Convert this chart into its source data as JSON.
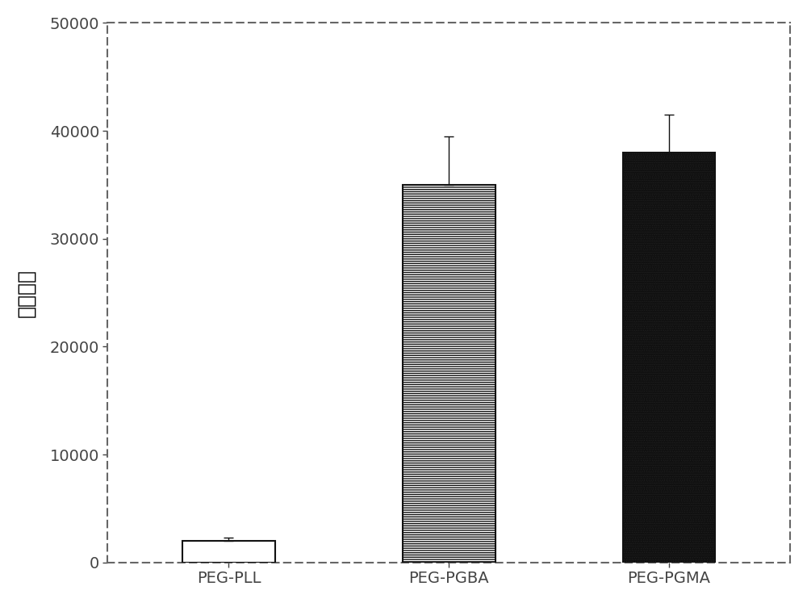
{
  "categories": [
    "PEG-PLL",
    "PEG-PGBA",
    "PEG-PGMA"
  ],
  "values": [
    2000,
    35000,
    38000
  ],
  "errors": [
    300,
    4500,
    3500
  ],
  "ylabel": "基因表达",
  "ylim": [
    0,
    50000
  ],
  "yticks": [
    0,
    10000,
    20000,
    30000,
    40000,
    50000
  ],
  "ytick_labels": [
    "0",
    "10000",
    "20000",
    "30000",
    "40000",
    "50000"
  ],
  "bar_width": 0.42,
  "figsize": [
    10.0,
    7.47
  ],
  "dpi": 100,
  "background_color": "#ffffff",
  "spine_color": "#666666",
  "edge_color": "#111111",
  "bar0_color": "white",
  "bar1_color": "white",
  "bar2_color": "#222222",
  "bar1_hatch": "------",
  "bar2_hatch": "oooooo",
  "tick_label_fontsize": 14,
  "xlabel_fontsize": 14,
  "ylabel_fontsize": 18
}
